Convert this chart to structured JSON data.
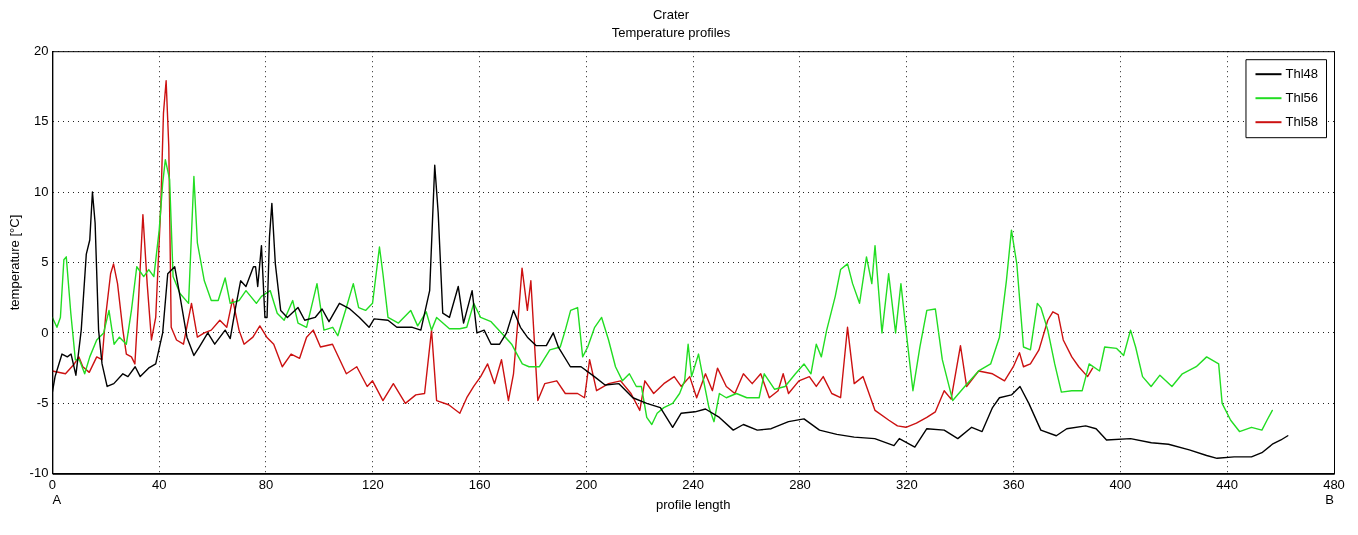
{
  "chart_data": {
    "type": "line",
    "title": "Crater",
    "subtitle": "Temperature profiles",
    "xlabel": "profile length",
    "ylabel": "temperature [°C]",
    "annotations": [
      "A",
      "B"
    ],
    "xlim": [
      0,
      480
    ],
    "xticks": [
      0,
      40,
      80,
      120,
      160,
      200,
      240,
      280,
      320,
      360,
      400,
      440,
      480
    ],
    "ylim": [
      -10,
      20
    ],
    "yticks": [
      -10,
      -5,
      0,
      5,
      10,
      15,
      20
    ],
    "grid": true,
    "legend": "top right",
    "marker": "none",
    "line_style": "solid",
    "series": [
      {
        "name": "Thl48",
        "color": "#000000",
        "x": [
          0,
          1,
          3.6,
          5.6,
          7,
          8.8,
          10.8,
          12.7,
          14,
          15,
          16,
          17.3,
          18.6,
          20.5,
          23,
          26.4,
          28.3,
          31,
          32.9,
          36,
          38.7,
          41.3,
          43.2,
          45.8,
          47.8,
          50.4,
          53,
          55,
          58.2,
          60.8,
          64.7,
          66.6,
          68.6,
          70.5,
          72.5,
          75.3,
          76.1,
          76.9,
          78.3,
          79.6,
          80.4,
          81.3,
          82.2,
          83.5,
          85.5,
          88,
          92,
          94.5,
          98.4,
          101,
          103.6,
          107.5,
          111.4,
          115,
          118.6,
          120.5,
          125.7,
          129,
          134.8,
          138,
          141.3,
          143.2,
          144.5,
          146.2,
          148.7,
          152,
          154,
          157.2,
          159,
          161.7,
          164.3,
          167.5,
          170.1,
          172.7,
          175.3,
          177.9,
          181.1,
          185,
          187.6,
          189.5,
          194,
          198,
          203,
          207,
          212.2,
          217.4,
          222.6,
          227.7,
          232.3,
          235.5,
          240.7,
          244.6,
          249.8,
          255,
          258.8,
          264,
          269.2,
          275.7,
          281.5,
          287.3,
          293.8,
          300.3,
          308,
          315.2,
          317.2,
          323,
          327.5,
          334,
          339.1,
          344.3,
          348.2,
          352.1,
          354.7,
          359.2,
          362.4,
          365.7,
          370.2,
          376,
          379.9,
          387,
          390.9,
          394.8,
          403.8,
          411.6,
          418,
          425.8,
          432.3,
          436.2,
          442.6,
          449.1,
          453,
          456.9,
          460.1,
          462.7
        ],
        "values": [
          -4.2,
          -3.1,
          -1.5,
          -1.7,
          -1.5,
          -3,
          0.2,
          5.6,
          6.6,
          10,
          7.8,
          0.2,
          -2.2,
          -3.8,
          -3.6,
          -2.9,
          -3.1,
          -2.4,
          -3.1,
          -2.5,
          -2.2,
          0,
          4.2,
          4.7,
          2.6,
          -0.3,
          -1.6,
          -1,
          0,
          -0.8,
          0.2,
          -0.4,
          1.8,
          3.7,
          3.3,
          4.7,
          4.7,
          3.3,
          6.2,
          1.1,
          1.1,
          6.8,
          9.2,
          4.9,
          1.6,
          1.1,
          1.8,
          0.9,
          1.1,
          1.7,
          0.8,
          2.1,
          1.7,
          1.1,
          0.4,
          1,
          0.9,
          0.4,
          0.4,
          0.2,
          3,
          11.9,
          8.5,
          1.4,
          1.1,
          3.3,
          0.7,
          3,
          0,
          0.2,
          -0.8,
          -0.8,
          0,
          1.6,
          0.4,
          -0.3,
          -0.9,
          -0.9,
          0,
          -1,
          -2.4,
          -2.4,
          -3.1,
          -3.7,
          -3.6,
          -4.6,
          -5,
          -5.3,
          -6.7,
          -5.7,
          -5.6,
          -5.4,
          -6,
          -6.9,
          -6.5,
          -6.9,
          -6.8,
          -6.3,
          -6.1,
          -6.9,
          -7.2,
          -7.4,
          -7.5,
          -8,
          -7.5,
          -8.1,
          -6.8,
          -6.9,
          -7.5,
          -6.7,
          -7,
          -5.3,
          -4.6,
          -4.4,
          -3.8,
          -5,
          -6.9,
          -7.3,
          -6.8,
          -6.6,
          -6.8,
          -7.6,
          -7.5,
          -7.8,
          -7.9,
          -8.3,
          -8.7,
          -8.9,
          -8.8,
          -8.8,
          -8.5,
          -7.9,
          -7.6,
          -7.3
        ]
      },
      {
        "name": "Thl56",
        "color": "#22dd22",
        "x": [
          0,
          1.7,
          3,
          4.3,
          5.2,
          6.9,
          8.6,
          10.1,
          12.1,
          14,
          16.6,
          19.2,
          21.2,
          23.1,
          25.1,
          27.7,
          29.6,
          31.6,
          34.2,
          36.1,
          38,
          40,
          41.3,
          42.3,
          43.9,
          45.2,
          47.8,
          51,
          53,
          54.3,
          56.9,
          59.5,
          62.1,
          64.7,
          66.6,
          69.9,
          72.5,
          76.4,
          78.3,
          81.6,
          84.2,
          86.8,
          90,
          92,
          95.2,
          99.1,
          101.7,
          105,
          106.9,
          110.1,
          112.7,
          114.7,
          117.3,
          119.9,
          122.5,
          123.8,
          125.7,
          129.6,
          134.2,
          136.8,
          140,
          142,
          143.9,
          148.7,
          152.6,
          155.2,
          157.8,
          160.4,
          164.3,
          168.2,
          172,
          174,
          176,
          178.5,
          182.4,
          186.3,
          190.2,
          192.1,
          194.1,
          196.7,
          198.6,
          200.5,
          203.1,
          205.7,
          208.3,
          210.9,
          213.5,
          216.1,
          218.7,
          220.6,
          222.6,
          224.5,
          226.5,
          229,
          232.3,
          234.9,
          236.8,
          238.1,
          239.4,
          242,
          243.9,
          245.9,
          247.8,
          249.8,
          252.4,
          256.2,
          260.1,
          264.7,
          266.6,
          270.5,
          274.4,
          278.3,
          281.5,
          284.1,
          286.1,
          288,
          290,
          293.2,
          295.2,
          297.8,
          299.7,
          302.3,
          304.9,
          306.9,
          308.1,
          310.7,
          313.2,
          315.8,
          317.8,
          319.7,
          322.3,
          324.9,
          327.5,
          330.7,
          333.3,
          337.2,
          341.7,
          346.9,
          351.4,
          354.7,
          357.3,
          359.2,
          361.2,
          363.7,
          366.3,
          368.9,
          370.2,
          372.8,
          375.4,
          377.9,
          381.8,
          385.7,
          388.3,
          392.2,
          394.1,
          398.6,
          401.2,
          403.8,
          405.7,
          408.3,
          411.5,
          414.8,
          419.3,
          423.2,
          428.4,
          432.3,
          436.8,
          438.1,
          441.3,
          444.6,
          449.1,
          453,
          454.9,
          456.9
        ],
        "values": [
          1.1,
          0.4,
          1.1,
          5.2,
          5.4,
          1.4,
          -1.9,
          -1.9,
          -2.9,
          -1.7,
          -0.5,
          0,
          1.6,
          -0.8,
          -0.3,
          -0.8,
          1.6,
          4.7,
          4,
          4.5,
          4,
          7.3,
          10.6,
          12.3,
          10.9,
          4,
          2.8,
          2.1,
          11.1,
          6.4,
          3.7,
          2.3,
          2.3,
          3.9,
          2.1,
          2.3,
          3,
          2.1,
          2.6,
          3,
          1.4,
          0.9,
          2.3,
          0.7,
          0.4,
          3.5,
          0.2,
          0.4,
          -0.2,
          1.8,
          3.5,
          1.8,
          1.6,
          2.1,
          6.1,
          4.2,
          1.1,
          0.7,
          1.6,
          0.5,
          1.5,
          0.2,
          1.1,
          0.3,
          0.3,
          0.4,
          2.1,
          1.1,
          0.8,
          0,
          -0.8,
          -1.5,
          -2.2,
          -2.4,
          -2.4,
          -1.2,
          -1,
          0.2,
          1.6,
          1.8,
          -1.7,
          -1,
          0.4,
          1.1,
          -0.5,
          -2.4,
          -3.4,
          -2.9,
          -3.8,
          -3.8,
          -6,
          -6.5,
          -5.7,
          -5.3,
          -5,
          -4.3,
          -3.4,
          -0.8,
          -3.1,
          -1.5,
          -3.4,
          -5.3,
          -6.3,
          -4.3,
          -4.6,
          -4.3,
          -4.6,
          -4.6,
          -2.9,
          -4,
          -3.8,
          -2.9,
          -2.2,
          -2.9,
          -0.8,
          -1.7,
          0.2,
          2.6,
          4.5,
          4.9,
          3.5,
          2.1,
          5.4,
          3.5,
          6.2,
          0,
          4.2,
          0,
          3.5,
          0.2,
          -4.1,
          -1,
          1.6,
          1.7,
          -1.9,
          -4.8,
          -3.8,
          -2.7,
          -2.2,
          -0.3,
          3.7,
          7.3,
          4.9,
          -1,
          -1.2,
          2.1,
          1.8,
          0.2,
          -2.2,
          -4.2,
          -4.1,
          -4.1,
          -2.2,
          -2.7,
          -1,
          -1.1,
          -1.6,
          0.2,
          -1,
          -3.1,
          -3.8,
          -3,
          -3.8,
          -2.9,
          -2.4,
          -1.7,
          -2.2,
          -5,
          -6.2,
          -7,
          -6.7,
          -6.9,
          -6.2,
          -5.5
        ]
      },
      {
        "name": "Thl58",
        "color": "#cc1111",
        "x": [
          0,
          4.9,
          8.2,
          9.9,
          11.4,
          13.8,
          16.6,
          18.6,
          19.9,
          21.8,
          22.9,
          24.4,
          26.4,
          27.7,
          29.6,
          30.9,
          32.2,
          33.9,
          35.5,
          37.1,
          38.7,
          40.6,
          41.6,
          42.6,
          43.6,
          44.5,
          46.5,
          49.1,
          52.1,
          54.3,
          56.9,
          59.5,
          62.7,
          65.3,
          67.5,
          69.9,
          71.8,
          75.1,
          77.7,
          80.3,
          82.9,
          86.1,
          89.4,
          92.6,
          95.2,
          97.7,
          100.4,
          104.9,
          110.1,
          114,
          117.9,
          119.9,
          123.8,
          127.7,
          132.2,
          136.1,
          139.4,
          142,
          143.9,
          148.4,
          152.6,
          155.2,
          157.8,
          160.4,
          163,
          165.6,
          168.2,
          170.8,
          172.7,
          174.6,
          175.9,
          177.9,
          179.2,
          181.8,
          184.4,
          188.9,
          192.1,
          196.7,
          199.3,
          201.2,
          203.8,
          208.3,
          212.8,
          216.7,
          220,
          221.9,
          225.2,
          229,
          232.9,
          235.5,
          238.7,
          241.3,
          244.6,
          247.2,
          249.1,
          252.4,
          255.6,
          258.8,
          262.1,
          265.3,
          268.5,
          271.8,
          273.7,
          275.7,
          279.6,
          283.5,
          286.1,
          288.7,
          291.9,
          295.2,
          297.8,
          300.3,
          303.6,
          308.1,
          313.3,
          316.5,
          319.7,
          323.6,
          327.5,
          330.7,
          334,
          336.6,
          340.1,
          342.4,
          346.9,
          352.1,
          356.6,
          359.9,
          362.2,
          363.7,
          366.3,
          369.5,
          372.8,
          374.7,
          376.7,
          378.6,
          381.8,
          384.4,
          387.7,
          389.6
        ],
        "values": [
          -2.7,
          -2.9,
          -2.2,
          -1.7,
          -2.4,
          -2.8,
          -1.7,
          -1.9,
          1.1,
          4.2,
          4.9,
          3.5,
          0.2,
          -1.5,
          -1.7,
          -2.2,
          2.1,
          8.4,
          3.5,
          -0.5,
          1.1,
          9,
          15.6,
          17.9,
          13.2,
          0.4,
          -0.5,
          -0.8,
          2.1,
          -0.3,
          0,
          0.2,
          0.9,
          0.4,
          2.4,
          0.2,
          -0.8,
          -0.3,
          0.5,
          -0.3,
          -0.8,
          -2.4,
          -1.5,
          -1.8,
          -0.3,
          0.2,
          -1,
          -0.8,
          -2.9,
          -2.4,
          -3.8,
          -3.4,
          -4.8,
          -3.6,
          -5,
          -4.4,
          -4.3,
          0.2,
          -4.8,
          -5.1,
          -5.7,
          -4.6,
          -3.8,
          -3.1,
          -2.2,
          -3.6,
          -1.9,
          -4.8,
          -2.9,
          1.4,
          4.6,
          1.6,
          3.7,
          -4.8,
          -3.6,
          -3.4,
          -4.3,
          -4.3,
          -4.6,
          -1.9,
          -4.1,
          -3.6,
          -3.4,
          -4.3,
          -5.5,
          -3.4,
          -4.3,
          -3.6,
          -3.1,
          -3.8,
          -3.1,
          -4.6,
          -2.9,
          -4.1,
          -2.5,
          -3.8,
          -4.3,
          -2.9,
          -3.6,
          -2.9,
          -4.6,
          -4.1,
          -2.9,
          -4.3,
          -3.4,
          -3.1,
          -3.8,
          -3.1,
          -4.3,
          -4.6,
          0.4,
          -3.6,
          -3.1,
          -5.5,
          -6.2,
          -6.6,
          -6.7,
          -6.4,
          -6,
          -5.6,
          -4.1,
          -4.7,
          -0.9,
          -3.8,
          -2.7,
          -2.9,
          -3.4,
          -2.4,
          -1.4,
          -2.4,
          -2.2,
          -1.2,
          0.9,
          1.5,
          1.3,
          -0.5,
          -1.7,
          -2.4,
          -3.1,
          -2.5
        ]
      }
    ]
  }
}
